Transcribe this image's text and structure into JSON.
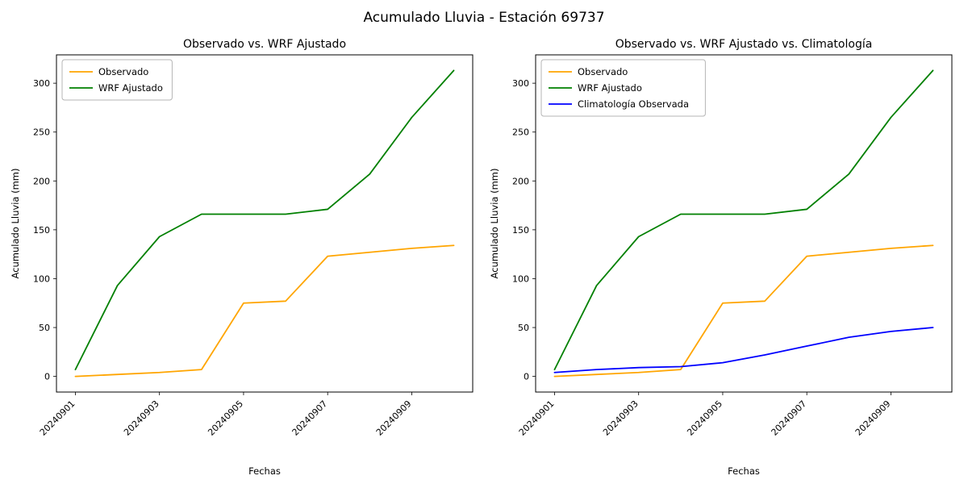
{
  "figure_title": "Acumulado Lluvia - Estación 69737",
  "chart_data": [
    {
      "type": "line",
      "title": "Observado vs. WRF Ajustado",
      "xlabel": "Fechas",
      "ylabel": "Acumulado Lluvia (mm)",
      "x": [
        "20240901",
        "20240902",
        "20240903",
        "20240904",
        "20240905",
        "20240906",
        "20240907",
        "20240908",
        "20240909",
        "20240910"
      ],
      "x_tick_indices": [
        0,
        2,
        4,
        6,
        8
      ],
      "x_tick_labels": [
        "20240901",
        "20240903",
        "20240905",
        "20240907",
        "20240909"
      ],
      "y_ticks": [
        0,
        50,
        100,
        150,
        200,
        250,
        300
      ],
      "ylim": [
        -16,
        329
      ],
      "grid": false,
      "legend_position": "upper-left",
      "series": [
        {
          "name": "Observado",
          "color": "#ffa500",
          "values": [
            0,
            2,
            4,
            7,
            75,
            77,
            123,
            127,
            131,
            134
          ]
        },
        {
          "name": "WRF Ajustado",
          "color": "#008000",
          "values": [
            7,
            93,
            143,
            166,
            166,
            166,
            171,
            207,
            265,
            313
          ]
        }
      ]
    },
    {
      "type": "line",
      "title": "Observado vs. WRF Ajustado vs. Climatología",
      "xlabel": "Fechas",
      "ylabel": "Acumulado Lluvia (mm)",
      "x": [
        "20240901",
        "20240902",
        "20240903",
        "20240904",
        "20240905",
        "20240906",
        "20240907",
        "20240908",
        "20240909",
        "20240910"
      ],
      "x_tick_indices": [
        0,
        2,
        4,
        6,
        8
      ],
      "x_tick_labels": [
        "20240901",
        "20240903",
        "20240905",
        "20240907",
        "20240909"
      ],
      "y_ticks": [
        0,
        50,
        100,
        150,
        200,
        250,
        300
      ],
      "ylim": [
        -16,
        329
      ],
      "grid": false,
      "legend_position": "upper-left",
      "series": [
        {
          "name": "Observado",
          "color": "#ffa500",
          "values": [
            0,
            2,
            4,
            7,
            75,
            77,
            123,
            127,
            131,
            134
          ]
        },
        {
          "name": "WRF Ajustado",
          "color": "#008000",
          "values": [
            7,
            93,
            143,
            166,
            166,
            166,
            171,
            207,
            265,
            313
          ]
        },
        {
          "name": "Climatología Observada",
          "color": "#0000ff",
          "values": [
            4,
            7,
            9,
            10,
            14,
            22,
            31,
            40,
            46,
            50
          ]
        }
      ]
    }
  ]
}
